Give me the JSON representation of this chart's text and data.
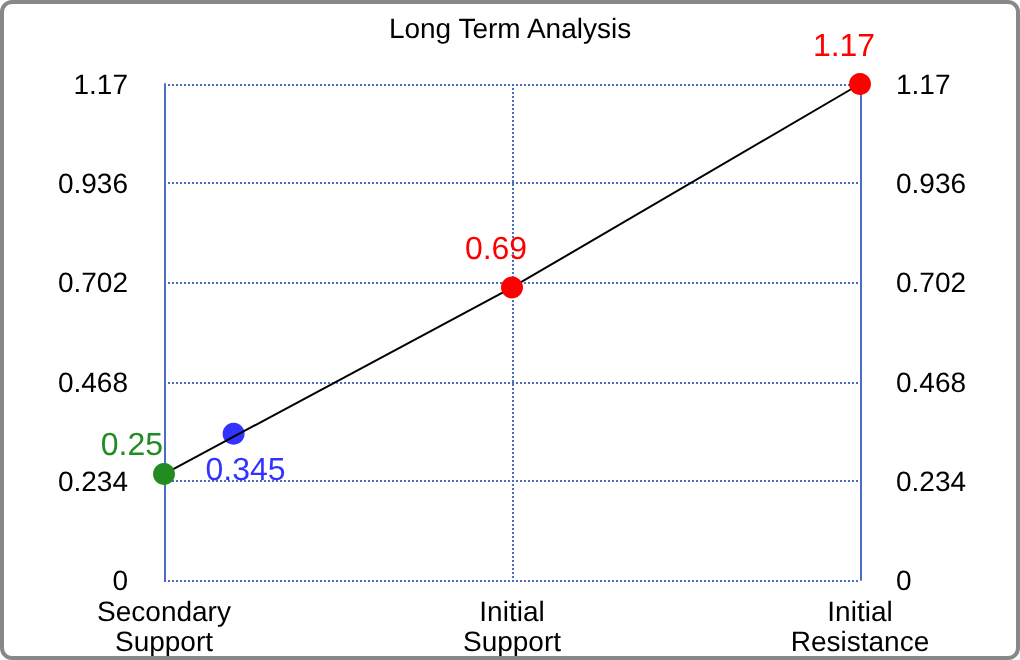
{
  "chart_data": {
    "type": "line",
    "title": "Long Term Analysis",
    "categories": [
      "Secondary\nSupport",
      null,
      null,
      null,
      null,
      "Initial\nSupport",
      null,
      null,
      null,
      null,
      "Initial\nResistance"
    ],
    "ylim": [
      0,
      1.17
    ],
    "yticks": [
      0,
      0.234,
      0.468,
      0.702,
      0.936,
      1.17
    ],
    "y2lim": [
      0,
      1.17
    ],
    "y2ticks": [
      0,
      0.234,
      0.468,
      0.702,
      0.936,
      1.17
    ],
    "series": [
      {
        "type": "line",
        "color": "#000000",
        "colors": [
          "#228b22",
          null,
          null,
          null,
          null,
          "#ff0000",
          null,
          null,
          null,
          null,
          "#ff0000"
        ],
        "values": [
          0.25,
          null,
          null,
          null,
          null,
          0.69,
          null,
          null,
          null,
          null,
          1.17
        ]
      },
      {
        "type": "scatter",
        "color": "#0000ff",
        "values": [
          null,
          0.345,
          null,
          null,
          null,
          null,
          null,
          null,
          null,
          null,
          null
        ]
      }
    ],
    "data_labels": true,
    "grid": true,
    "marker": "circle",
    "line_style": "solid"
  }
}
